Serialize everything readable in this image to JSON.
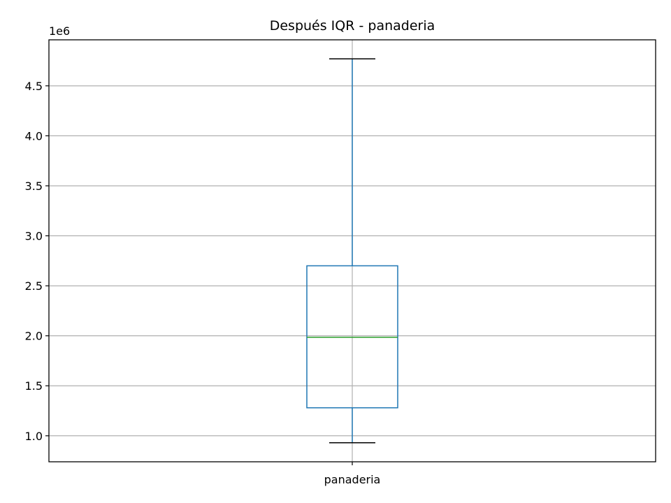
{
  "chart_data": {
    "type": "box",
    "title": "Después IQR - panaderia",
    "categories": [
      "panaderia"
    ],
    "boxes": [
      {
        "name": "panaderia",
        "whisker_low": 930000,
        "q1": 1280000,
        "median": 1985000,
        "q3": 2700000,
        "whisker_high": 4770000
      }
    ],
    "y_offset_label": "1e6",
    "y_ticks": [
      1.0,
      1.5,
      2.0,
      2.5,
      3.0,
      3.5,
      4.0,
      4.5
    ],
    "y_tick_labels": [
      "1.0",
      "1.5",
      "2.0",
      "2.5",
      "3.0",
      "3.5",
      "4.0",
      "4.5"
    ],
    "ylim": [
      0.74,
      4.96
    ],
    "grid": true,
    "colors": {
      "box": "#1f77b4",
      "median": "#2ca02c",
      "caps": "#000000",
      "grid": "#b0b0b0"
    }
  }
}
